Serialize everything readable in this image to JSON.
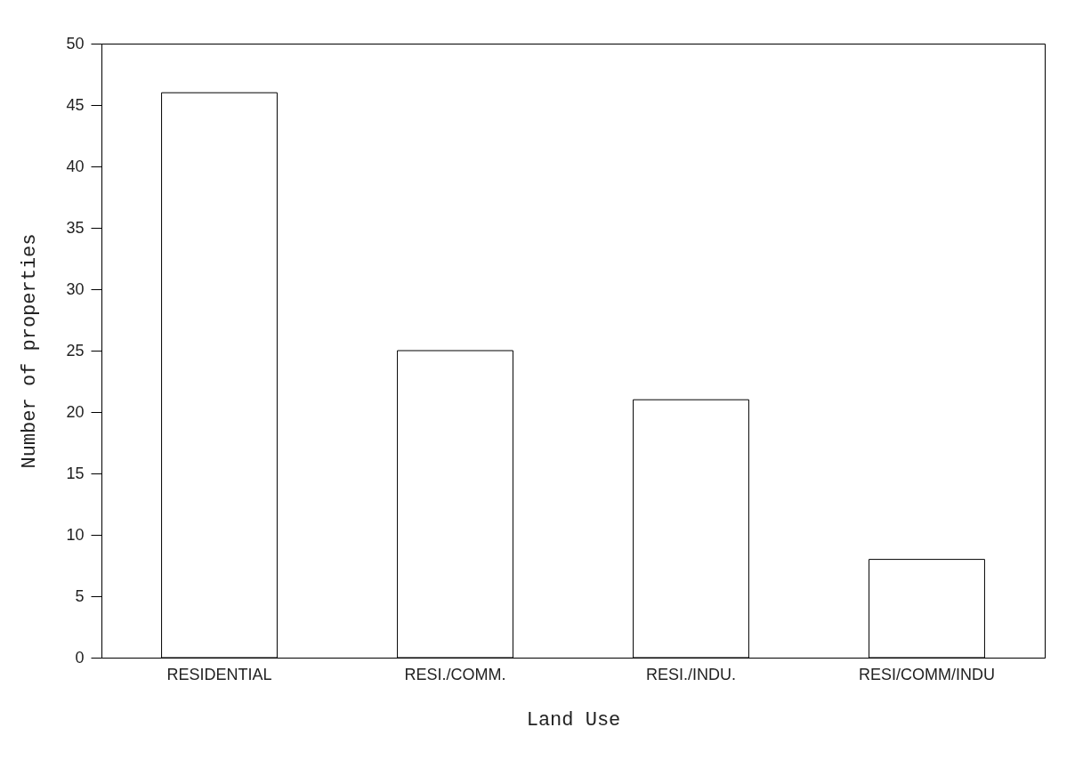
{
  "chart_data": {
    "type": "bar",
    "xlabel": "Land Use",
    "ylabel": "Number of properties",
    "categories": [
      "RESIDENTIAL",
      "RESI./COMM.",
      "RESI./INDU.",
      "RESI/COMM/INDU"
    ],
    "values": [
      46,
      25,
      21,
      8
    ],
    "color": "#ffffff",
    "ylim": [
      0,
      50
    ],
    "yticks": [
      0,
      5,
      10,
      15,
      20,
      25,
      30,
      35,
      40,
      45,
      50
    ],
    "grid": false
  }
}
